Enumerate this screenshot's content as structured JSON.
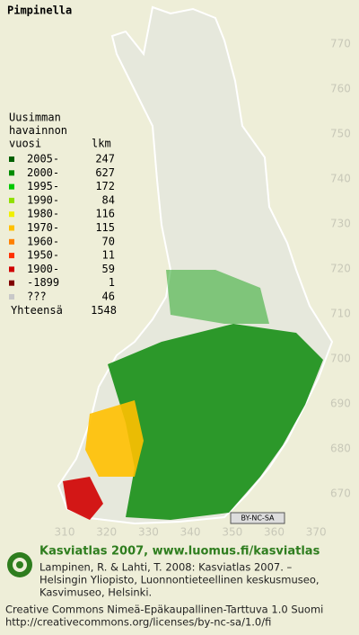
{
  "title": "Pimpinella",
  "legend": {
    "header": [
      "Uusimman",
      "havainnon",
      "vuosi"
    ],
    "count_header": "lkm",
    "rows": [
      {
        "label": "2005-",
        "count": 247,
        "color": "#006000"
      },
      {
        "label": "2000-",
        "count": 627,
        "color": "#008c00"
      },
      {
        "label": "1995-",
        "count": 172,
        "color": "#00c800"
      },
      {
        "label": "1990-",
        "count": 84,
        "color": "#90e000"
      },
      {
        "label": "1980-",
        "count": 116,
        "color": "#f0f000"
      },
      {
        "label": "1970-",
        "count": 115,
        "color": "#ffc000"
      },
      {
        "label": "1960-",
        "count": 70,
        "color": "#ff8000"
      },
      {
        "label": "1950-",
        "count": 11,
        "color": "#ff3000"
      },
      {
        "label": "1900-",
        "count": 59,
        "color": "#d00000"
      },
      {
        "label": "-1899",
        "count": 1,
        "color": "#800000"
      },
      {
        "label": "???",
        "count": 46,
        "color": "#c8c8c8"
      }
    ],
    "total_label": "Yhteensä",
    "total": 1548
  },
  "yticks": [
    770,
    760,
    750,
    740,
    730,
    720,
    710,
    700,
    690,
    680,
    670
  ],
  "xticks": [
    310,
    320,
    330,
    340,
    350,
    360,
    370
  ],
  "badge": "BY-NC-SA",
  "footer": {
    "heading": "Kasviatlas 2007, www.luomus.fi/kasviatlas",
    "citation": [
      "Lampinen, R. & Lahti, T. 2008: Kasviatlas 2007. –",
      "Helsingin Yliopisto, Luonnontieteellinen keskusmuseo,",
      "Kasvimuseo, Helsinki."
    ],
    "license": [
      "Creative Commons Nimeä-Epäkaupallinen-Tarttuva 1.0 Suomi",
      "http://creativecommons.org/licenses/by-nc-sa/1.0/fi"
    ]
  }
}
